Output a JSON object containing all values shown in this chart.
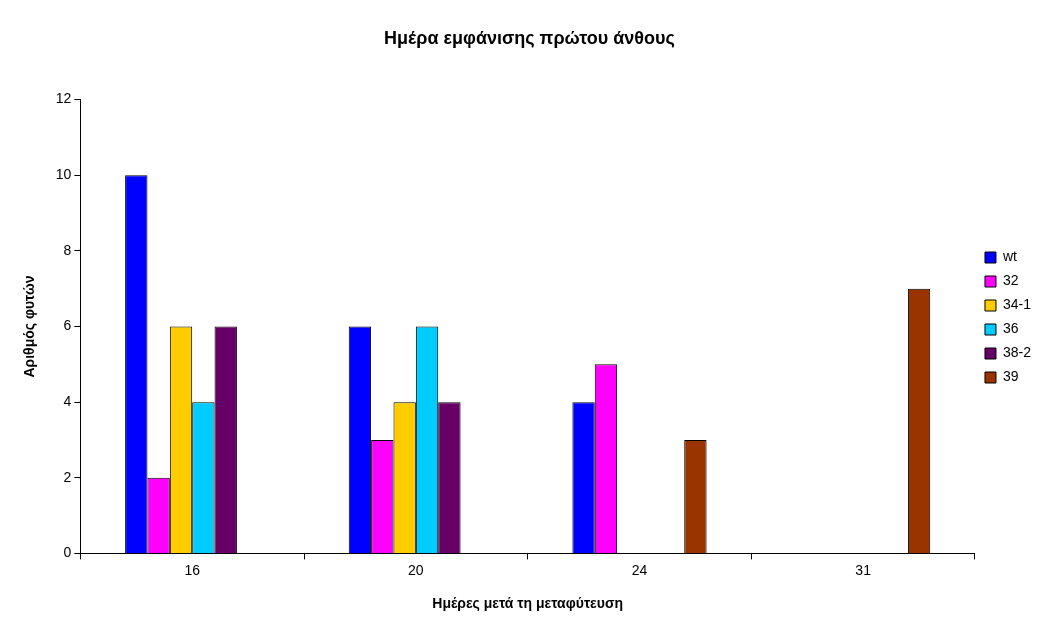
{
  "chart_data": {
    "type": "bar",
    "title": "Ημέρα εμφάνισης πρώτου άνθους",
    "xlabel": "Ημέρες μετά τη μεταφύτευση",
    "ylabel": "Αριθμός φυτών",
    "categories": [
      "16",
      "20",
      "24",
      "31"
    ],
    "series": [
      {
        "name": "wt",
        "color": "#0000ff",
        "values": [
          10,
          6,
          4,
          0
        ]
      },
      {
        "name": "32",
        "color": "#ff00ff",
        "values": [
          2,
          3,
          5,
          0
        ]
      },
      {
        "name": "34-1",
        "color": "#ffcc00",
        "values": [
          6,
          4,
          0,
          0
        ]
      },
      {
        "name": "36",
        "color": "#00ccff",
        "values": [
          4,
          6,
          0,
          0
        ]
      },
      {
        "name": "38-2",
        "color": "#660066",
        "values": [
          6,
          4,
          0,
          0
        ]
      },
      {
        "name": "39",
        "color": "#993300",
        "values": [
          0,
          0,
          3,
          7
        ]
      }
    ],
    "ylim": [
      0,
      12
    ],
    "yticks": [
      0,
      2,
      4,
      6,
      8,
      10,
      12
    ],
    "grid": false,
    "legend": "right"
  }
}
